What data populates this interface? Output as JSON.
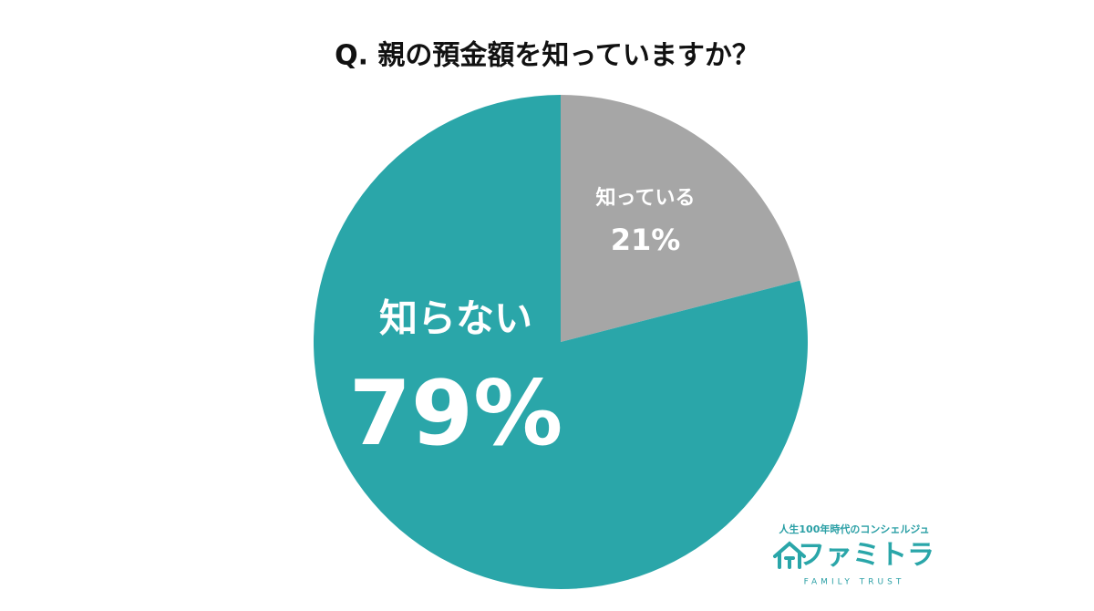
{
  "chart_data": {
    "type": "pie",
    "title": "Q. 親の預金額を知っていますか？",
    "categories": [
      "知っている",
      "知らない"
    ],
    "values": [
      21,
      79
    ],
    "value_labels": [
      "21%",
      "79%"
    ],
    "colors": [
      "#a6a6a6",
      "#2aa6a9"
    ]
  },
  "logo": {
    "tagline": "人生100年時代のコンシェルジュ",
    "name": "ファミトラ",
    "subtitle": "FAMILY TRUST"
  }
}
